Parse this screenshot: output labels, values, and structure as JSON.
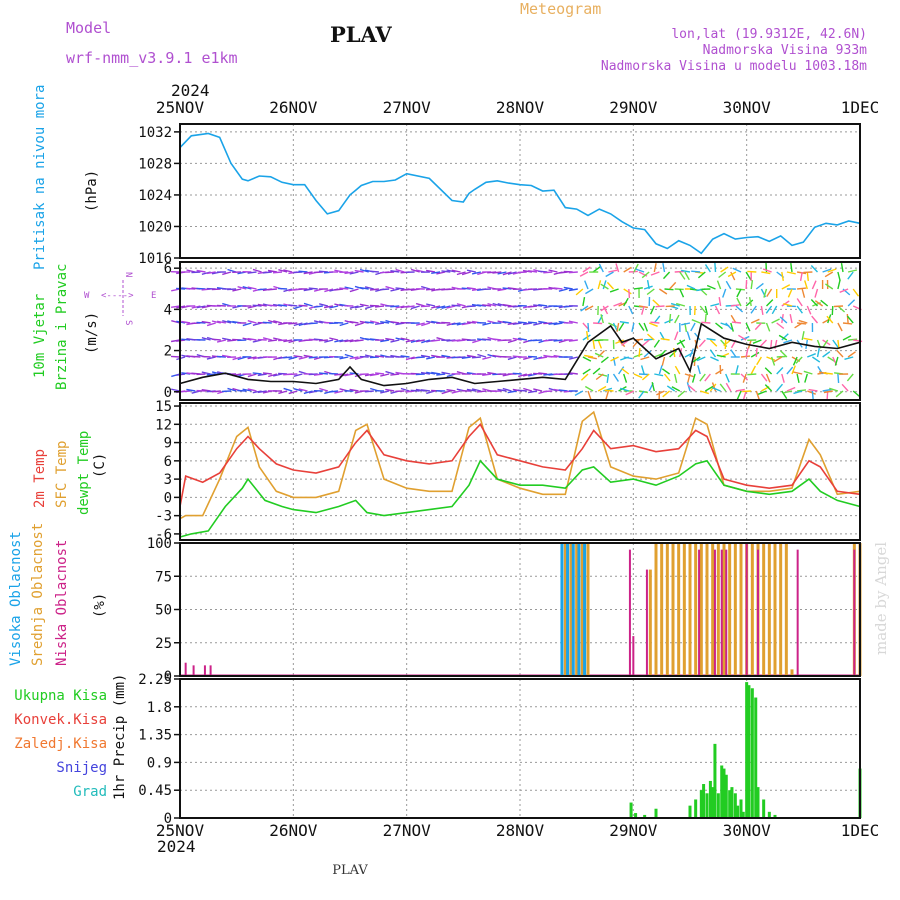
{
  "header": {
    "model_label": "Model",
    "model_name": "wrf-nmm_v3.9.1  e1km",
    "station": "PLAV",
    "title": "Meteogram",
    "coords": "lon,lat (19.9312E, 42.6N)",
    "elevation": "Nadmorska Visina 933m",
    "model_elevation": "Nadmorska Visina u modelu 1003.18m",
    "year_top": "2024",
    "year_bottom": "2024",
    "footer_station": "PLAV",
    "credit": "made by Angel"
  },
  "colors": {
    "pressure": "#1aa3e8",
    "temp2m": "#e8403a",
    "sfc": "#e0a030",
    "dew": "#22cc22",
    "high_cloud": "#1aa3e8",
    "mid_cloud": "#e0a030",
    "low_cloud": "#cc2288",
    "total_precip": "#22cc22",
    "conv_precip": "#e8403a",
    "strat_precip": "#f07830",
    "snow": "#4444dd",
    "graupel": "#22bbbb",
    "label_purple": "#b050d0",
    "label_gold": "#e8b060"
  },
  "x_ticks": [
    "25NOV",
    "26NOV",
    "27NOV",
    "28NOV",
    "29NOV",
    "30NOV",
    "1DEC"
  ],
  "panels": {
    "pressure": {
      "label": "Pritisak na nivou mora",
      "unit": "(hPa)"
    },
    "wind": {
      "label1": "10m Vjetar",
      "label2": "Brzina i Pravac",
      "unit": "(m/s)",
      "compass_n": "N",
      "compass_s": "S",
      "compass_w": "W",
      "compass_e": "E",
      "compass_arrows": "<---->"
    },
    "temp": {
      "label1": "2m Temp",
      "label2": "SFC Temp",
      "label3": "dewpt Temp",
      "unit": "(C)"
    },
    "cloud": {
      "label1": "Visoka Oblacnost",
      "label2": "Srednja Oblacnost",
      "label3": "Niska Oblacnost",
      "unit": "(%)"
    },
    "precip": {
      "unit": "1hr Precip (mm)",
      "legend": [
        "Ukupna Kisa",
        "Konvek.Kisa",
        "Zaledj.Kisa",
        "Snijeg",
        "Grad"
      ]
    }
  },
  "chart_data": [
    {
      "type": "line",
      "title": "",
      "ylabel": "(hPa)",
      "ylim": [
        1016,
        1033
      ],
      "yticks": [
        "1016",
        "1020",
        "1024",
        "1028",
        "1032"
      ],
      "series": [
        {
          "x": [
            0,
            0.1,
            0.25,
            0.35,
            0.45,
            0.55,
            0.6,
            0.7,
            0.8,
            0.9,
            1.0,
            1.1,
            1.2,
            1.3,
            1.4,
            1.5,
            1.55,
            1.6,
            1.7,
            1.8,
            1.9,
            2.0,
            2.2,
            2.4,
            2.5,
            2.55,
            2.6,
            2.7,
            2.8,
            2.9,
            3.0,
            3.1,
            3.2,
            3.3,
            3.4,
            3.5,
            3.6,
            3.7,
            3.8,
            3.9,
            4.0,
            4.1,
            4.2,
            4.3,
            4.4,
            4.5,
            4.6,
            4.7,
            4.8,
            4.9,
            5.0,
            5.1,
            5.2,
            5.3,
            5.4,
            5.5,
            5.6,
            5.7,
            5.8,
            5.9,
            6.0
          ],
          "y": [
            1030,
            1031.5,
            1031.8,
            1031.3,
            1028,
            1026,
            1025.8,
            1026.4,
            1026.3,
            1025.6,
            1025.3,
            1025.3,
            1023.3,
            1021.6,
            1022,
            1024,
            1024.6,
            1025.2,
            1025.7,
            1025.7,
            1025.9,
            1026.7,
            1026.1,
            1023.3,
            1023.1,
            1024.2,
            1024.7,
            1025.6,
            1025.8,
            1025.5,
            1025.3,
            1025.2,
            1024.5,
            1024.6,
            1022.4,
            1022.2,
            1021.4,
            1022.2,
            1021.6,
            1020.6,
            1019.8,
            1019.6,
            1017.8,
            1017.2,
            1018.2,
            1017.6,
            1016.6,
            1018.4,
            1019.1,
            1018.4,
            1018.6,
            1018.7,
            1018.1,
            1018.8,
            1017.6,
            1018,
            1019.9,
            1020.4,
            1020.2,
            1020.7,
            1020.4
          ]
        }
      ]
    },
    {
      "type": "line",
      "title": "",
      "ylabel": "(m/s)",
      "ylim": [
        -0.4,
        6.3
      ],
      "yticks": [
        "0",
        "2",
        "4",
        "6"
      ],
      "series": [
        {
          "x": [
            0,
            0.2,
            0.4,
            0.6,
            0.8,
            1.0,
            1.2,
            1.4,
            1.5,
            1.6,
            1.8,
            2.0,
            2.2,
            2.4,
            2.6,
            2.8,
            3.0,
            3.2,
            3.4,
            3.6,
            3.8,
            3.9,
            4.0,
            4.2,
            4.4,
            4.5,
            4.6,
            4.8,
            5.0,
            5.2,
            5.4,
            5.6,
            5.8,
            6.0
          ],
          "y": [
            0.4,
            0.7,
            0.9,
            0.6,
            0.5,
            0.5,
            0.4,
            0.6,
            1.2,
            0.6,
            0.3,
            0.4,
            0.6,
            0.7,
            0.4,
            0.5,
            0.6,
            0.7,
            0.6,
            2.4,
            3.2,
            2.4,
            2.6,
            1.6,
            2.1,
            1.0,
            3.3,
            2.6,
            2.3,
            2.1,
            2.4,
            2.2,
            2.1,
            2.4
          ]
        }
      ]
    },
    {
      "type": "line",
      "title": "",
      "ylabel": "(C)",
      "ylim": [
        -7,
        15.5
      ],
      "yticks": [
        "-6",
        "-3",
        "0",
        "3",
        "6",
        "9",
        "12",
        "15"
      ],
      "series": [
        {
          "name": "2m Temp",
          "x": [
            0,
            0.05,
            0.2,
            0.35,
            0.5,
            0.6,
            0.7,
            0.85,
            1.0,
            1.2,
            1.4,
            1.55,
            1.65,
            1.8,
            2.0,
            2.2,
            2.4,
            2.55,
            2.65,
            2.8,
            3.0,
            3.2,
            3.4,
            3.55,
            3.65,
            3.8,
            4.0,
            4.2,
            4.4,
            4.55,
            4.65,
            4.8,
            5.0,
            5.2,
            5.4,
            5.55,
            5.65,
            5.8,
            6.0
          ],
          "y": [
            -1.5,
            3.5,
            2.5,
            4,
            8,
            10,
            8,
            5.5,
            4.5,
            4,
            5,
            9,
            11,
            7,
            6,
            5.5,
            6,
            10,
            12,
            7,
            6,
            5,
            4.5,
            8,
            11,
            8,
            8.5,
            7.5,
            8,
            11,
            10,
            3,
            2,
            1.5,
            2,
            6,
            5,
            1,
            0.5
          ]
        },
        {
          "name": "SFC Temp",
          "x": [
            0,
            0.05,
            0.2,
            0.35,
            0.5,
            0.6,
            0.7,
            0.85,
            1.0,
            1.2,
            1.4,
            1.55,
            1.65,
            1.8,
            2.0,
            2.2,
            2.4,
            2.55,
            2.65,
            2.8,
            3.0,
            3.2,
            3.4,
            3.55,
            3.65,
            3.8,
            4.0,
            4.2,
            4.4,
            4.55,
            4.65,
            4.8,
            5.0,
            5.2,
            5.4,
            5.55,
            5.65,
            5.8,
            6.0
          ],
          "y": [
            -3.5,
            -3,
            -3,
            3,
            10,
            11.5,
            5,
            1,
            0,
            0,
            1,
            11,
            12,
            3,
            1.5,
            1,
            1,
            11.5,
            13,
            3,
            1.5,
            0.5,
            0.5,
            12.5,
            14,
            5,
            3.5,
            3,
            4,
            13,
            12,
            2,
            1,
            1,
            1.5,
            9.5,
            7,
            0.5,
            1
          ]
        },
        {
          "name": "dewpt Temp",
          "x": [
            0,
            0.1,
            0.25,
            0.4,
            0.55,
            0.6,
            0.75,
            0.9,
            1.0,
            1.2,
            1.4,
            1.55,
            1.65,
            1.8,
            2.0,
            2.2,
            2.4,
            2.55,
            2.65,
            2.8,
            3.0,
            3.2,
            3.4,
            3.55,
            3.65,
            3.8,
            4.0,
            4.2,
            4.4,
            4.55,
            4.65,
            4.8,
            5.0,
            5.2,
            5.4,
            5.55,
            5.65,
            5.8,
            6.0
          ],
          "y": [
            -6.5,
            -6,
            -5.5,
            -1.5,
            1.5,
            3,
            -0.5,
            -1.5,
            -2,
            -2.5,
            -1.5,
            -0.5,
            -2.5,
            -3,
            -2.5,
            -2,
            -1.5,
            2,
            6,
            3,
            2,
            2,
            1.5,
            4.5,
            5,
            2.5,
            3,
            2,
            3.5,
            5.5,
            6,
            2,
            1,
            0.5,
            1,
            3,
            1,
            -0.5,
            -1.5
          ]
        }
      ]
    },
    {
      "type": "bar",
      "title": "",
      "ylabel": "(%)",
      "ylim": [
        0,
        100
      ],
      "yticks": [
        "0",
        "25",
        "50",
        "75",
        "100"
      ],
      "series": [
        {
          "name": "Visoka Oblacnost",
          "x": [
            3.37,
            3.42,
            3.47,
            3.52,
            3.57
          ],
          "values": [
            100,
            100,
            100,
            100,
            100
          ]
        },
        {
          "name": "Srednja Oblacnost",
          "x": [
            3.4,
            3.45,
            3.5,
            3.55,
            3.6,
            4.15,
            4.2,
            4.25,
            4.3,
            4.35,
            4.4,
            4.45,
            4.5,
            4.55,
            4.6,
            4.65,
            4.7,
            4.75,
            4.8,
            4.85,
            4.9,
            4.95,
            5.0,
            5.05,
            5.1,
            5.15,
            5.2,
            5.25,
            5.3,
            5.35,
            5.4,
            5.95,
            6.0
          ],
          "values": [
            100,
            100,
            100,
            100,
            100,
            80,
            100,
            100,
            100,
            100,
            100,
            100,
            100,
            100,
            100,
            100,
            100,
            100,
            100,
            100,
            100,
            100,
            100,
            100,
            100,
            100,
            100,
            100,
            100,
            100,
            5,
            100,
            100
          ]
        },
        {
          "name": "Niska Oblacnost",
          "x": [
            0.05,
            0.12,
            0.22,
            0.27,
            3.97,
            4.0,
            4.12,
            4.58,
            4.72,
            4.78,
            4.82,
            5.0,
            5.1,
            5.45,
            5.95
          ],
          "values": [
            10,
            8,
            8,
            8,
            95,
            30,
            80,
            95,
            95,
            95,
            95,
            100,
            95,
            95,
            95
          ]
        }
      ]
    },
    {
      "type": "bar",
      "title": "",
      "ylabel": "1hr Precip (mm)",
      "ylim": [
        0,
        2.25
      ],
      "yticks": [
        "0",
        "0.45",
        "0.9",
        "1.35",
        "1.8",
        "2.25"
      ],
      "series": [
        {
          "name": "Ukupna Kisa",
          "x": [
            3.98,
            4.02,
            4.1,
            4.2,
            4.5,
            4.55,
            4.6,
            4.62,
            4.65,
            4.68,
            4.7,
            4.72,
            4.75,
            4.78,
            4.8,
            4.82,
            4.85,
            4.87,
            4.9,
            4.92,
            4.95,
            4.97,
            5.0,
            5.02,
            5.05,
            5.08,
            5.1,
            5.15,
            5.2,
            5.25,
            6.0
          ],
          "values": [
            0.25,
            0.08,
            0.05,
            0.15,
            0.2,
            0.3,
            0.45,
            0.55,
            0.4,
            0.6,
            0.5,
            1.2,
            0.4,
            0.85,
            0.8,
            0.7,
            0.45,
            0.5,
            0.4,
            0.2,
            0.3,
            0.1,
            2.2,
            2.15,
            2.1,
            1.95,
            0.5,
            0.3,
            0.1,
            0.05,
            0.8
          ]
        }
      ]
    }
  ]
}
